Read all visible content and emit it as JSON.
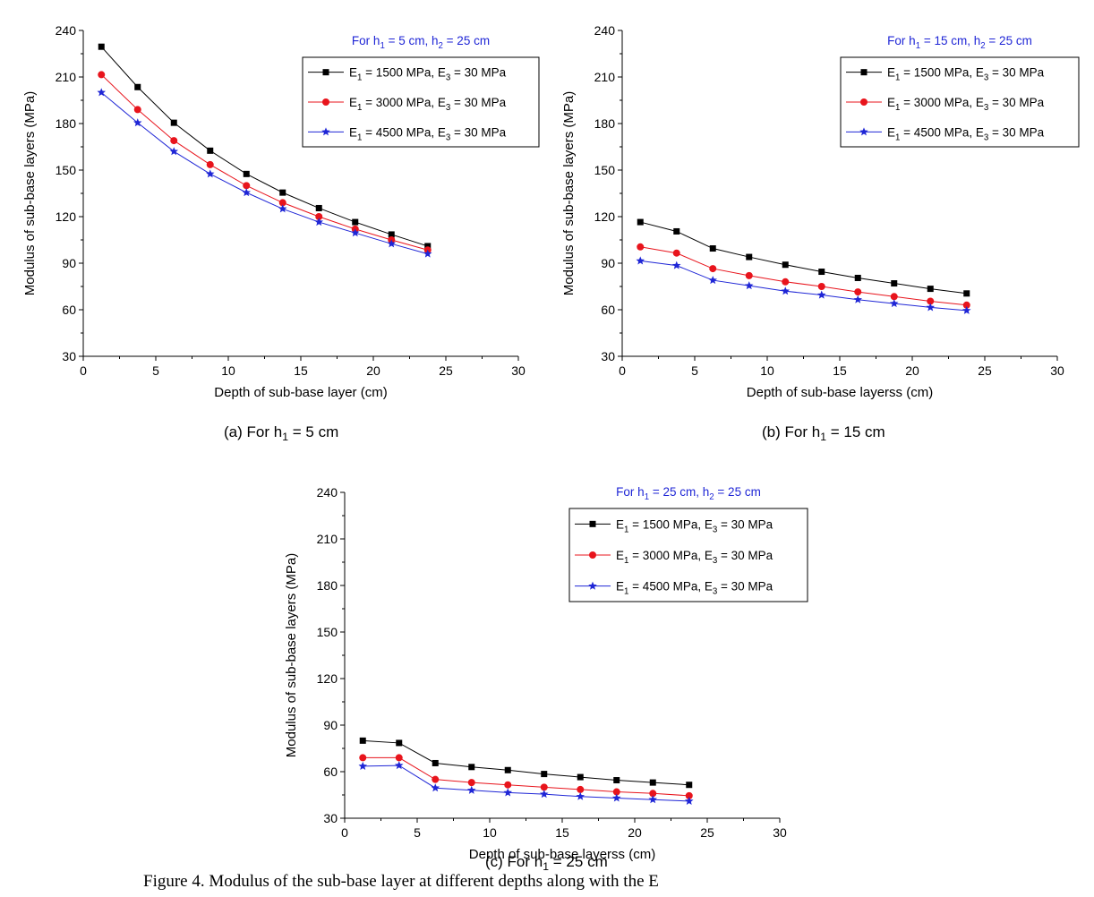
{
  "caption": "Figure 4. Modulus of the sub-base layer at different depths along with the E",
  "chart_data": [
    {
      "type": "line",
      "panel_caption": "(a) For h1 = 5 cm",
      "legend_title": "For h1 = 5 cm, h2 = 25 cm",
      "xlabel": "Depth of sub-base layer (cm)",
      "ylabel": "Modulus of sub-base layers (MPa)",
      "xlim": [
        0,
        30
      ],
      "ylim": [
        30,
        240
      ],
      "xticks": [
        0,
        5,
        10,
        15,
        20,
        25,
        30
      ],
      "yticks": [
        30,
        60,
        90,
        120,
        150,
        180,
        210,
        240
      ],
      "grid": false,
      "legend_position": "top-right",
      "x": [
        1.25,
        3.75,
        6.25,
        8.75,
        11.25,
        13.75,
        16.25,
        18.75,
        21.25,
        23.75
      ],
      "series": [
        {
          "name": "E1 = 1500 MPa, E3 = 30 MPa",
          "color": "#000000",
          "marker": "square",
          "values": [
            229.5,
            203.5,
            180.5,
            162.5,
            147.5,
            135.5,
            125.5,
            116.5,
            108.5,
            101.0
          ]
        },
        {
          "name": "E1 = 3000 MPa, E3 = 30 MPa",
          "color": "#e8141c",
          "marker": "circle",
          "values": [
            211.5,
            189.0,
            169.0,
            153.5,
            140.0,
            129.0,
            120.0,
            112.0,
            105.0,
            98.5
          ]
        },
        {
          "name": "E1 = 4500 MPa, E3 = 30 MPa",
          "color": "#1f26d6",
          "marker": "star",
          "values": [
            200.0,
            180.5,
            162.0,
            147.5,
            135.5,
            125.0,
            116.5,
            109.5,
            102.5,
            96.0
          ]
        }
      ]
    },
    {
      "type": "line",
      "panel_caption": "(b) For h1 = 15 cm",
      "legend_title": "For h1 = 15 cm, h2 = 25 cm",
      "xlabel": "Depth of sub-base layerss (cm)",
      "ylabel": "Modulus of sub-base layers (MPa)",
      "xlim": [
        0,
        30
      ],
      "ylim": [
        30,
        240
      ],
      "xticks": [
        0,
        5,
        10,
        15,
        20,
        25,
        30
      ],
      "yticks": [
        30,
        60,
        90,
        120,
        150,
        180,
        210,
        240
      ],
      "grid": false,
      "legend_position": "top-right",
      "x": [
        1.25,
        3.75,
        6.25,
        8.75,
        11.25,
        13.75,
        16.25,
        18.75,
        21.25,
        23.75
      ],
      "series": [
        {
          "name": "E1 = 1500 MPa, E3 = 30 MPa",
          "color": "#000000",
          "marker": "square",
          "values": [
            116.5,
            110.5,
            99.5,
            94.0,
            89.0,
            84.5,
            80.5,
            77.0,
            73.5,
            70.5
          ]
        },
        {
          "name": "E1 = 3000 MPa, E3 = 30 MPa",
          "color": "#e8141c",
          "marker": "circle",
          "values": [
            100.5,
            96.5,
            86.5,
            82.0,
            78.0,
            75.0,
            71.5,
            68.5,
            65.5,
            63.0
          ]
        },
        {
          "name": "E1 = 4500 MPa, E3 = 30 MPa",
          "color": "#1f26d6",
          "marker": "star",
          "values": [
            91.5,
            88.5,
            79.0,
            75.5,
            72.0,
            69.5,
            66.5,
            64.0,
            61.5,
            59.5
          ]
        }
      ]
    },
    {
      "type": "line",
      "panel_caption": "(c) For h1 = 25 cm",
      "legend_title": "For h1 = 25 cm, h2 = 25 cm",
      "xlabel": "Depth of sub-base layerss (cm)",
      "ylabel": "Modulus of sub-base layers (MPa)",
      "xlim": [
        0,
        30
      ],
      "ylim": [
        30,
        240
      ],
      "xticks": [
        0,
        5,
        10,
        15,
        20,
        25,
        30
      ],
      "yticks": [
        30,
        60,
        90,
        120,
        150,
        180,
        210,
        240
      ],
      "grid": false,
      "legend_position": "top-right",
      "x": [
        1.25,
        3.75,
        6.25,
        8.75,
        11.25,
        13.75,
        16.25,
        18.75,
        21.25,
        23.75
      ],
      "series": [
        {
          "name": "E1 = 1500 MPa, E3 = 30 MPa",
          "color": "#000000",
          "marker": "square",
          "values": [
            80.0,
            78.5,
            65.5,
            63.0,
            61.0,
            58.5,
            56.5,
            54.5,
            53.0,
            51.5
          ]
        },
        {
          "name": "E1 = 3000 MPa, E3 = 30 MPa",
          "color": "#e8141c",
          "marker": "circle",
          "values": [
            69.0,
            69.0,
            55.0,
            53.0,
            51.5,
            50.0,
            48.5,
            47.0,
            46.0,
            44.5
          ]
        },
        {
          "name": "E1 = 4500 MPa, E3 = 30 MPa",
          "color": "#1f26d6",
          "marker": "star",
          "values": [
            63.5,
            64.0,
            49.5,
            48.0,
            46.5,
            45.5,
            44.0,
            43.0,
            42.0,
            41.0
          ]
        }
      ]
    }
  ]
}
